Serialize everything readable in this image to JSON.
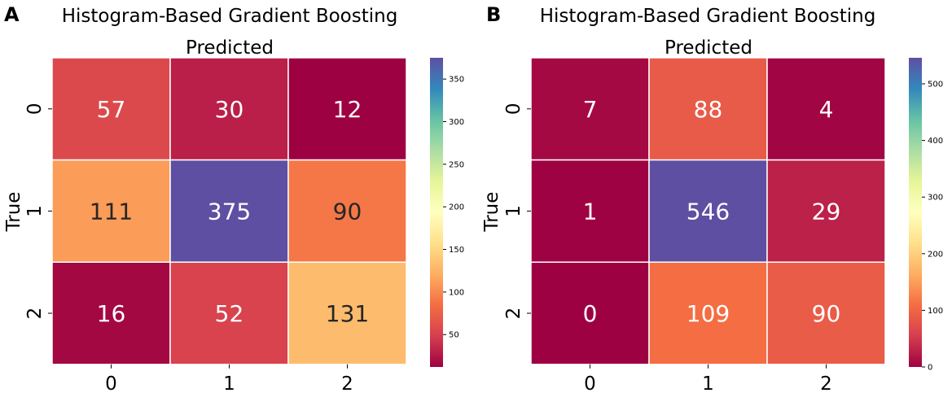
{
  "chart_data": [
    {
      "type": "heatmap",
      "panel_label": "A",
      "title": "Histogram-Based Gradient Boosting",
      "xlabel": "Predicted",
      "ylabel": "True",
      "x_categories": [
        "0",
        "1",
        "2"
      ],
      "y_categories": [
        "0",
        "1",
        "2"
      ],
      "values": [
        [
          57,
          30,
          12
        ],
        [
          111,
          375,
          90
        ],
        [
          16,
          52,
          131
        ]
      ],
      "colorbar": {
        "min": 12,
        "max": 375,
        "ticks": [
          50,
          100,
          150,
          200,
          250,
          300,
          350
        ]
      },
      "colormap": "Spectral"
    },
    {
      "type": "heatmap",
      "panel_label": "B",
      "title": "Histogram-Based Gradient Boosting",
      "xlabel": "Predicted",
      "ylabel": "True",
      "x_categories": [
        "0",
        "1",
        "2"
      ],
      "y_categories": [
        "0",
        "1",
        "2"
      ],
      "values": [
        [
          7,
          88,
          4
        ],
        [
          1,
          546,
          29
        ],
        [
          0,
          109,
          90
        ]
      ],
      "colorbar": {
        "min": 0,
        "max": 546,
        "ticks": [
          0,
          100,
          200,
          300,
          400,
          500
        ]
      },
      "colormap": "Spectral"
    }
  ]
}
